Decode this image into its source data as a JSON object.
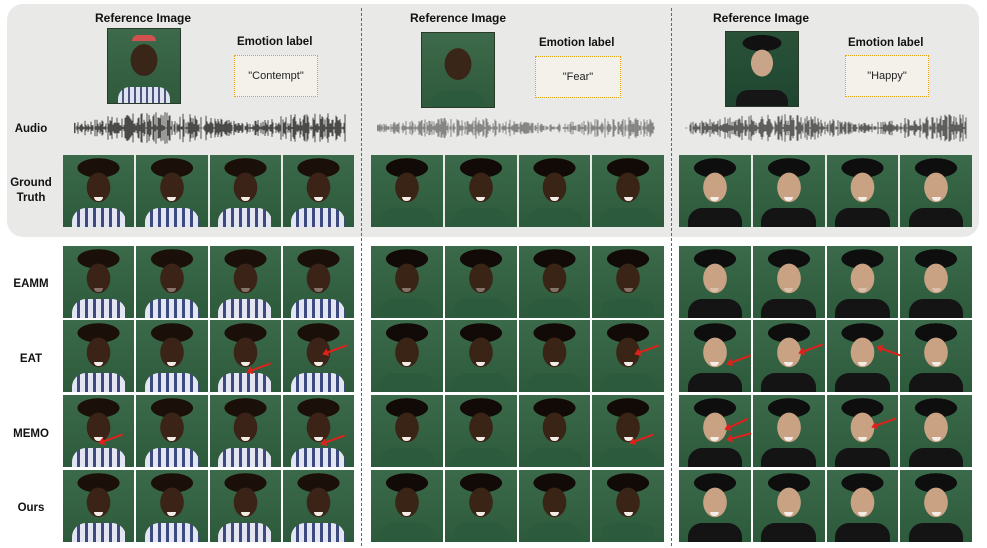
{
  "columns": [
    {
      "ref_title": "Reference Image",
      "emotion_title": "Emotion label",
      "emotion": "\"Contempt\""
    },
    {
      "ref_title": "Reference Image",
      "emotion_title": "Emotion label",
      "emotion": "\"Fear\""
    },
    {
      "ref_title": "Reference Image",
      "emotion_title": "Emotion label",
      "emotion": "\"Happy\""
    }
  ],
  "rows": {
    "audio": "Audio",
    "gt_line1": "Ground",
    "gt_line2": "Truth",
    "eamm": "EAMM",
    "eat": "EAT",
    "memo": "MEMO",
    "ours": "Ours"
  },
  "colors": {
    "panel": "#e9e9e7",
    "arrow": "#e0211b",
    "emotion_border": "#e5a416"
  }
}
